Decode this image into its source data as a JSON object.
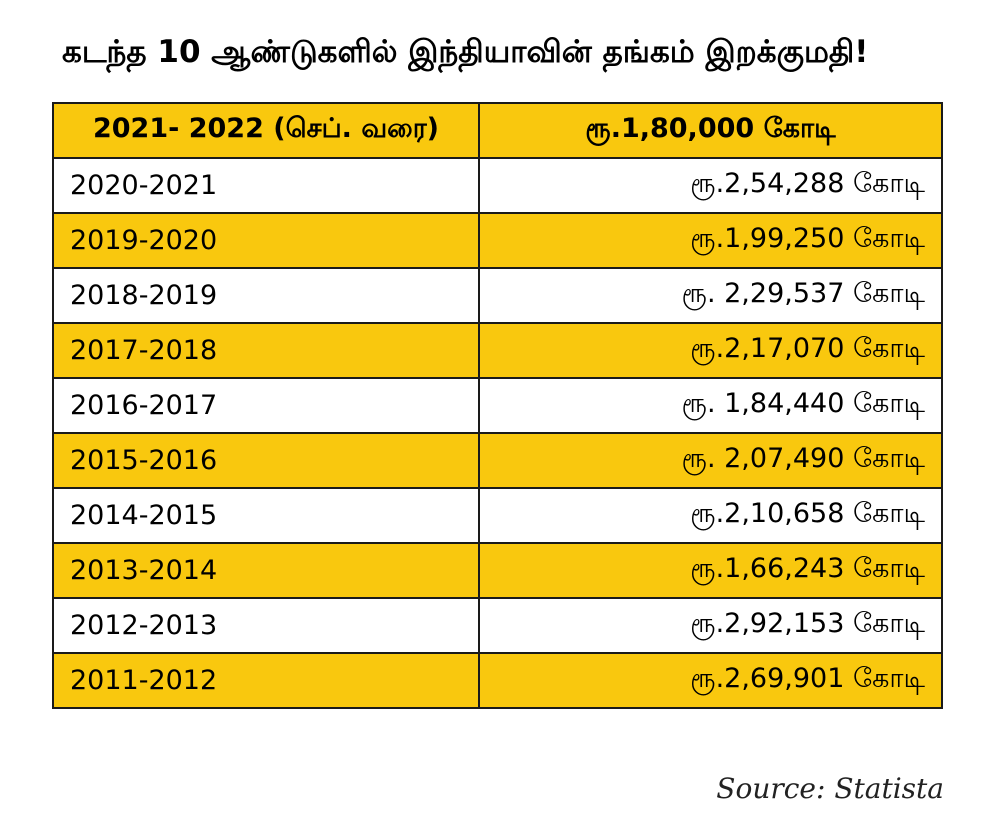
{
  "title": "கடந்த 10 ஆண்டுகளில் இந்தியாவின் தங்கம் இறக்குமதி!",
  "colors": {
    "highlight_row": "#f9c80e",
    "plain_row": "#ffffff",
    "border": "#1a1a1a"
  },
  "chart_data": {
    "type": "table",
    "columns": 2,
    "header": {
      "period": "2021- 2022 (செப். வரை)",
      "value": "ரூ.1,80,000 கோடி"
    },
    "rows": [
      {
        "period": "2020-2021",
        "value": "ரூ.2,54,288 கோடி"
      },
      {
        "period": "2019-2020",
        "value": "ரூ.1,99,250 கோடி"
      },
      {
        "period": "2018-2019",
        "value": "ரூ. 2,29,537 கோடி"
      },
      {
        "period": "2017-2018",
        "value": "ரூ.2,17,070 கோடி"
      },
      {
        "period": "2016-2017",
        "value": "ரூ. 1,84,440 கோடி"
      },
      {
        "period": "2015-2016",
        "value": "ரூ. 2,07,490 கோடி"
      },
      {
        "period": "2014-2015",
        "value": "ரூ.2,10,658 கோடி"
      },
      {
        "period": "2013-2014",
        "value": "ரூ.1,66,243 கோடி"
      },
      {
        "period": "2012-2013",
        "value": "ரூ.2,92,153 கோடி"
      },
      {
        "period": "2011-2012",
        "value": "ரூ.2,69,901 கோடி"
      }
    ]
  },
  "source": "Source: Statista"
}
